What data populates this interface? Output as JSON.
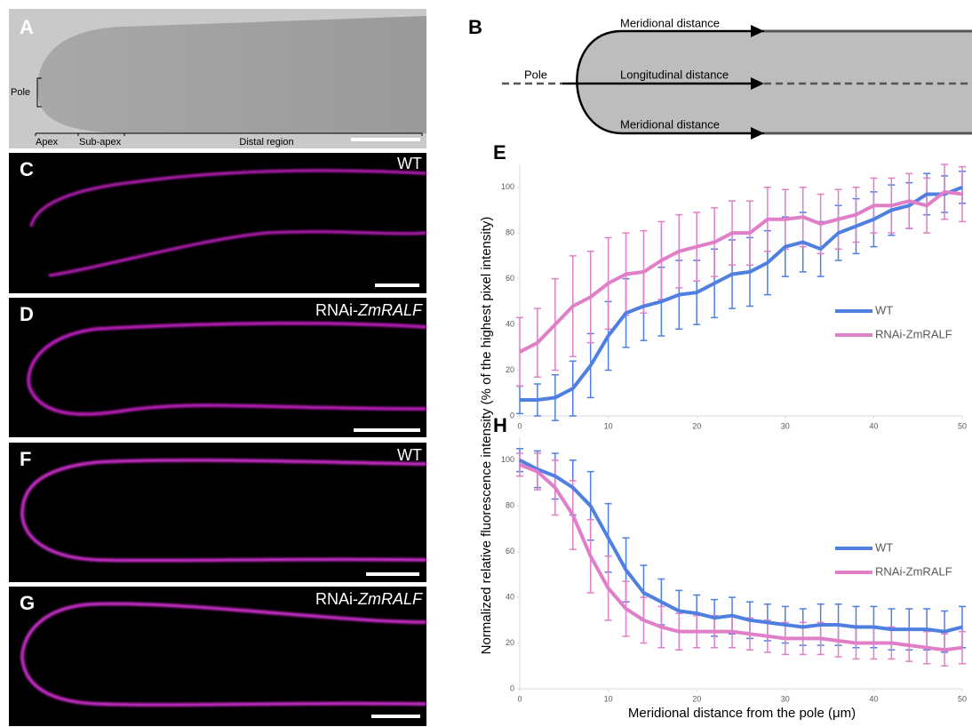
{
  "panels": {
    "A": {
      "label": "A",
      "pole": "Pole",
      "regions": [
        "Apex",
        "Sub-apex",
        "Distal region"
      ]
    },
    "B": {
      "label": "B",
      "pole": "Pole",
      "top": "Meridional distance",
      "middle": "Longitudinal distance",
      "bottom": "Meridional distance"
    },
    "C": {
      "label": "C",
      "genotype": "WT"
    },
    "D": {
      "label": "D",
      "prefix": "RNAi-",
      "gene": "ZmRALF"
    },
    "F": {
      "label": "F",
      "genotype": "WT"
    },
    "G": {
      "label": "G",
      "prefix": "RNAi-",
      "gene": "ZmRALF"
    }
  },
  "y_label": "Normalized relative fluorescence intensity (% of the highest pixel intensity)",
  "x_label": "Meridional distance from the pole (μm)",
  "chart_data": [
    {
      "type": "line",
      "panel_label": "E",
      "x": [
        0,
        2,
        4,
        6,
        8,
        10,
        12,
        14,
        16,
        18,
        20,
        22,
        24,
        26,
        28,
        30,
        32,
        34,
        36,
        38,
        40,
        42,
        44,
        46,
        48,
        50
      ],
      "xlim": [
        0,
        50
      ],
      "xticks": [
        0,
        10,
        20,
        30,
        40,
        50
      ],
      "ylim": [
        0,
        110
      ],
      "yticks": [
        0,
        20,
        40,
        60,
        80,
        100
      ],
      "legend": "right",
      "series": [
        {
          "name": "WT",
          "color": "#4f7fe0",
          "values": [
            7,
            7,
            8,
            12,
            22,
            35,
            45,
            48,
            50,
            53,
            54,
            58,
            62,
            63,
            67,
            74,
            76,
            73,
            80,
            83,
            86,
            90,
            92,
            97,
            97,
            100
          ],
          "errors": [
            6,
            7,
            10,
            12,
            14,
            15,
            15,
            15,
            15,
            15,
            14,
            15,
            15,
            15,
            14,
            13,
            13,
            12,
            12,
            12,
            12,
            11,
            10,
            9,
            8,
            7
          ]
        },
        {
          "name": "RNAi-ZmRALF",
          "color": "#e07fc8",
          "values": [
            28,
            32,
            40,
            48,
            52,
            58,
            62,
            63,
            68,
            72,
            74,
            76,
            80,
            80,
            86,
            86,
            87,
            84,
            86,
            88,
            92,
            92,
            94,
            92,
            98,
            97
          ],
          "errors": [
            15,
            15,
            20,
            22,
            20,
            20,
            18,
            18,
            17,
            16,
            15,
            15,
            14,
            14,
            14,
            13,
            13,
            13,
            13,
            12,
            12,
            12,
            12,
            12,
            12,
            12
          ]
        }
      ]
    },
    {
      "type": "line",
      "panel_label": "H",
      "x": [
        0,
        2,
        4,
        6,
        8,
        10,
        12,
        14,
        16,
        18,
        20,
        22,
        24,
        26,
        28,
        30,
        32,
        34,
        36,
        38,
        40,
        42,
        44,
        46,
        48,
        50
      ],
      "xlim": [
        0,
        50
      ],
      "xticks": [
        0,
        10,
        20,
        30,
        40,
        50
      ],
      "ylim": [
        0,
        110
      ],
      "yticks": [
        0,
        20,
        40,
        60,
        80,
        100
      ],
      "legend": "right",
      "series": [
        {
          "name": "WT",
          "color": "#4f7fe0",
          "values": [
            100,
            96,
            93,
            88,
            80,
            66,
            52,
            42,
            38,
            34,
            33,
            31,
            32,
            30,
            29,
            28,
            27,
            28,
            28,
            27,
            27,
            26,
            26,
            26,
            25,
            27
          ],
          "errors": [
            5,
            8,
            10,
            12,
            15,
            15,
            14,
            12,
            10,
            9,
            8,
            8,
            8,
            8,
            8,
            8,
            8,
            9,
            9,
            9,
            9,
            9,
            9,
            9,
            9,
            9
          ]
        },
        {
          "name": "RNAi-ZmRALF",
          "color": "#e07fc8",
          "values": [
            98,
            95,
            88,
            76,
            58,
            44,
            35,
            30,
            27,
            25,
            25,
            25,
            25,
            24,
            23,
            22,
            22,
            22,
            21,
            20,
            20,
            20,
            19,
            18,
            17,
            18
          ],
          "errors": [
            5,
            8,
            12,
            15,
            16,
            14,
            12,
            10,
            9,
            8,
            7,
            7,
            7,
            7,
            7,
            7,
            7,
            7,
            7,
            7,
            7,
            7,
            7,
            7,
            7,
            7
          ]
        }
      ]
    }
  ]
}
